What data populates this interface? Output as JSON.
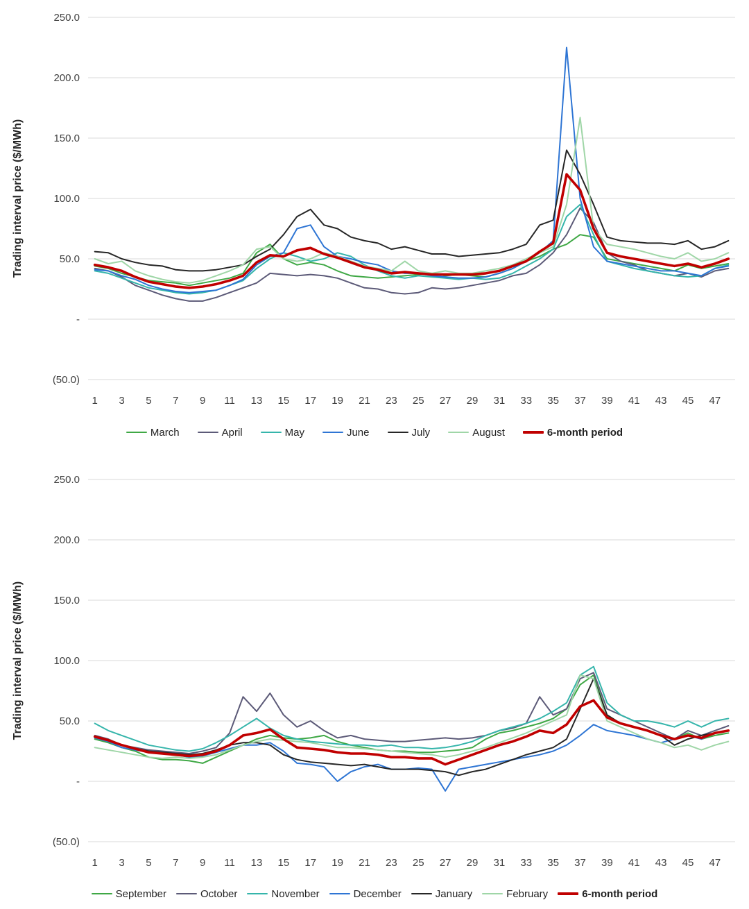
{
  "style": {
    "gridline": "#d9d9d9",
    "tick_color": "#404040",
    "background": "#ffffff",
    "accent_red": "#c00000"
  },
  "chart_data": [
    {
      "type": "line",
      "title": "",
      "xlabel": "",
      "ylabel": "Trading interval price ($/MWh)",
      "ylim": [
        -50,
        250
      ],
      "grid": "horizontal",
      "legend_position": "bottom",
      "n_points": 48,
      "yticks": [
        {
          "v": 250,
          "label": "250.0"
        },
        {
          "v": 200,
          "label": "200.0"
        },
        {
          "v": 150,
          "label": "150.0"
        },
        {
          "v": 100,
          "label": "100.0"
        },
        {
          "v": 50,
          "label": "50.0"
        },
        {
          "v": 0,
          "label": "-"
        },
        {
          "v": -50,
          "label": "(50.0)"
        }
      ],
      "x_tick_labels": [
        "1",
        "3",
        "5",
        "7",
        "9",
        "11",
        "13",
        "15",
        "17",
        "19",
        "21",
        "23",
        "25",
        "27",
        "29",
        "31",
        "33",
        "35",
        "37",
        "39",
        "41",
        "43",
        "45",
        "47"
      ],
      "series": [
        {
          "name": "March",
          "color": "#3fa845",
          "width": 2,
          "values": [
            44,
            42,
            38,
            35,
            32,
            31,
            30,
            28,
            30,
            32,
            34,
            38,
            55,
            62,
            50,
            45,
            47,
            45,
            40,
            36,
            35,
            34,
            35,
            36,
            37,
            38,
            36,
            37,
            36,
            35,
            38,
            42,
            48,
            52,
            58,
            62,
            70,
            68,
            50,
            48,
            46,
            44,
            42,
            40,
            45,
            42,
            44,
            46
          ]
        },
        {
          "name": "April",
          "color": "#5c5a78",
          "width": 2,
          "values": [
            42,
            40,
            35,
            28,
            24,
            20,
            17,
            15,
            15,
            18,
            22,
            26,
            30,
            38,
            37,
            36,
            37,
            36,
            34,
            30,
            26,
            25,
            22,
            21,
            22,
            26,
            25,
            26,
            28,
            30,
            32,
            36,
            38,
            45,
            55,
            70,
            92,
            80,
            55,
            48,
            45,
            40,
            38,
            36,
            38,
            35,
            40,
            42
          ]
        },
        {
          "name": "May",
          "color": "#35b5ab",
          "width": 2,
          "values": [
            40,
            38,
            34,
            30,
            26,
            24,
            22,
            21,
            22,
            24,
            28,
            32,
            42,
            50,
            55,
            52,
            48,
            50,
            55,
            52,
            45,
            40,
            36,
            34,
            36,
            35,
            34,
            33,
            34,
            33,
            34,
            38,
            44,
            50,
            58,
            85,
            95,
            70,
            48,
            45,
            42,
            40,
            38,
            36,
            35,
            36,
            42,
            45
          ]
        },
        {
          "name": "June",
          "color": "#2e75d4",
          "width": 2,
          "values": [
            41,
            40,
            36,
            33,
            28,
            25,
            23,
            22,
            23,
            24,
            28,
            33,
            45,
            52,
            55,
            75,
            78,
            60,
            52,
            50,
            47,
            45,
            40,
            38,
            38,
            36,
            35,
            34,
            34,
            35,
            38,
            42,
            48,
            55,
            65,
            225,
            100,
            60,
            48,
            46,
            44,
            42,
            40,
            40,
            38,
            36,
            42,
            44
          ]
        },
        {
          "name": "July",
          "color": "#262626",
          "width": 2,
          "values": [
            56,
            55,
            50,
            47,
            45,
            44,
            41,
            40,
            40,
            41,
            43,
            45,
            52,
            58,
            70,
            85,
            91,
            78,
            75,
            68,
            65,
            63,
            58,
            60,
            57,
            54,
            54,
            52,
            53,
            54,
            55,
            58,
            62,
            78,
            82,
            140,
            120,
            95,
            68,
            65,
            64,
            63,
            63,
            62,
            65,
            58,
            60,
            65
          ]
        },
        {
          "name": "August",
          "color": "#9fd6a7",
          "width": 2,
          "values": [
            50,
            46,
            48,
            40,
            36,
            33,
            31,
            30,
            32,
            36,
            40,
            45,
            58,
            60,
            50,
            48,
            50,
            55,
            52,
            48,
            44,
            42,
            40,
            48,
            40,
            38,
            40,
            38,
            38,
            40,
            42,
            45,
            50,
            55,
            60,
            95,
            167,
            75,
            62,
            60,
            58,
            55,
            52,
            50,
            55,
            48,
            50,
            55
          ]
        },
        {
          "name": "6-month period",
          "color": "#c00000",
          "width": 3.6,
          "values": [
            45,
            43,
            40,
            35,
            31,
            29,
            27,
            26,
            27,
            29,
            32,
            36,
            47,
            53,
            52,
            57,
            59,
            54,
            51,
            47,
            43,
            41,
            38,
            39,
            38,
            37,
            37,
            37,
            37,
            38,
            40,
            44,
            48,
            56,
            63,
            120,
            107,
            75,
            55,
            52,
            50,
            48,
            46,
            44,
            46,
            43,
            46,
            50
          ]
        }
      ]
    },
    {
      "type": "line",
      "title": "",
      "xlabel": "",
      "ylabel": "Trading interval price ($/MWh)",
      "ylim": [
        -50,
        250
      ],
      "grid": "horizontal",
      "legend_position": "bottom",
      "n_points": 48,
      "yticks": [
        {
          "v": 250,
          "label": "250.0"
        },
        {
          "v": 200,
          "label": "200.0"
        },
        {
          "v": 150,
          "label": "150.0"
        },
        {
          "v": 100,
          "label": "100.0"
        },
        {
          "v": 50,
          "label": "50.0"
        },
        {
          "v": 0,
          "label": "-"
        },
        {
          "v": -50,
          "label": "(50.0)"
        }
      ],
      "x_tick_labels": [
        "1",
        "3",
        "5",
        "7",
        "9",
        "11",
        "13",
        "15",
        "17",
        "19",
        "21",
        "23",
        "25",
        "27",
        "29",
        "31",
        "33",
        "35",
        "37",
        "39",
        "41",
        "43",
        "45",
        "47"
      ],
      "series": [
        {
          "name": "September",
          "color": "#3fa845",
          "width": 2,
          "values": [
            35,
            32,
            28,
            25,
            20,
            18,
            18,
            17,
            15,
            20,
            25,
            30,
            35,
            38,
            36,
            35,
            36,
            38,
            33,
            30,
            28,
            26,
            25,
            25,
            24,
            24,
            25,
            26,
            28,
            35,
            40,
            42,
            45,
            48,
            52,
            60,
            80,
            88,
            55,
            48,
            45,
            42,
            38,
            35,
            40,
            35,
            38,
            40
          ]
        },
        {
          "name": "October",
          "color": "#5c5a78",
          "width": 2,
          "values": [
            38,
            35,
            30,
            28,
            26,
            25,
            24,
            23,
            25,
            28,
            40,
            70,
            58,
            73,
            55,
            45,
            50,
            42,
            36,
            38,
            35,
            34,
            33,
            33,
            34,
            35,
            36,
            35,
            36,
            38,
            42,
            44,
            48,
            70,
            55,
            60,
            85,
            90,
            60,
            55,
            50,
            45,
            40,
            35,
            42,
            38,
            42,
            46
          ]
        },
        {
          "name": "November",
          "color": "#35b5ab",
          "width": 2,
          "values": [
            48,
            42,
            38,
            34,
            30,
            28,
            26,
            25,
            27,
            32,
            38,
            45,
            52,
            44,
            38,
            35,
            33,
            32,
            31,
            30,
            30,
            29,
            30,
            28,
            28,
            27,
            28,
            30,
            33,
            38,
            42,
            45,
            48,
            52,
            58,
            65,
            88,
            95,
            65,
            55,
            50,
            50,
            48,
            45,
            50,
            45,
            50,
            52
          ]
        },
        {
          "name": "December",
          "color": "#2e75d4",
          "width": 2,
          "values": [
            36,
            33,
            28,
            26,
            24,
            23,
            22,
            20,
            21,
            24,
            27,
            30,
            30,
            32,
            25,
            15,
            14,
            12,
            0,
            8,
            12,
            14,
            10,
            10,
            11,
            10,
            -8,
            10,
            12,
            14,
            16,
            18,
            20,
            22,
            25,
            30,
            38,
            47,
            42,
            40,
            38,
            35,
            32,
            35,
            38,
            35,
            40,
            42
          ]
        },
        {
          "name": "January",
          "color": "#262626",
          "width": 2,
          "values": [
            37,
            34,
            30,
            27,
            25,
            24,
            23,
            22,
            23,
            26,
            30,
            32,
            32,
            30,
            22,
            18,
            16,
            15,
            14,
            13,
            14,
            12,
            10,
            10,
            10,
            9,
            8,
            5,
            8,
            10,
            14,
            18,
            22,
            25,
            28,
            35,
            60,
            85,
            55,
            48,
            45,
            42,
            38,
            30,
            35,
            38,
            40,
            42
          ]
        },
        {
          "name": "February",
          "color": "#9fd6a7",
          "width": 2,
          "values": [
            28,
            26,
            24,
            22,
            20,
            19,
            20,
            19,
            20,
            22,
            26,
            30,
            33,
            35,
            34,
            33,
            32,
            30,
            28,
            28,
            27,
            26,
            25,
            24,
            23,
            22,
            20,
            22,
            25,
            28,
            32,
            36,
            40,
            45,
            50,
            55,
            88,
            85,
            50,
            45,
            40,
            35,
            32,
            28,
            30,
            26,
            30,
            33
          ]
        },
        {
          "name": "6-month period",
          "color": "#c00000",
          "width": 3.6,
          "values": [
            37,
            34,
            30,
            27,
            24,
            23,
            22,
            21,
            22,
            25,
            30,
            38,
            40,
            43,
            35,
            28,
            27,
            26,
            24,
            23,
            23,
            22,
            20,
            20,
            19,
            19,
            14,
            18,
            22,
            26,
            30,
            33,
            37,
            42,
            40,
            47,
            62,
            67,
            53,
            48,
            45,
            42,
            38,
            35,
            38,
            36,
            40,
            42
          ]
        }
      ]
    }
  ]
}
